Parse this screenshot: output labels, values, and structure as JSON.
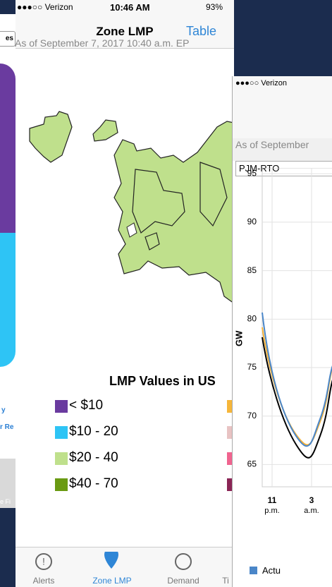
{
  "left_screen": {
    "texts": [
      "es",
      "y",
      "r Re",
      "e Fi"
    ]
  },
  "zone_screen": {
    "status": {
      "carrier": "●●●○○ Verizon",
      "time": "10:46 AM",
      "battery": "93%"
    },
    "nav": {
      "title": "Zone LMP",
      "action": "Table"
    },
    "as_of": "As of September 7, 2017 10:40 a.m. EP",
    "legend": {
      "title": "LMP Values in US",
      "items": [
        {
          "label": "< $10",
          "color": "#6a3b9f"
        },
        {
          "label": "$10 - 20",
          "color": "#2ec4f5"
        },
        {
          "label": "$20 - 40",
          "color": "#bfe08c"
        },
        {
          "label": "$40 - 70",
          "color": "#6a9a12"
        }
      ],
      "partial_colors": [
        "#f6b63a",
        "#e8c3c3",
        "#f0648f",
        "#8a2555"
      ]
    },
    "tabs": [
      "Alerts",
      "Zone LMP",
      "Demand",
      "Ti"
    ]
  },
  "demand_screen": {
    "status": {
      "carrier": "●●●○○ Verizon"
    },
    "as_of": "As of September",
    "zone": "PJM-RTO",
    "chart": {
      "type": "line",
      "y_label": "GW",
      "ylim": [
        62.7,
        95.6
      ],
      "yticks": [
        65,
        70,
        75,
        80,
        85,
        90,
        95
      ],
      "x_labels": [
        {
          "hour": "11",
          "period": "p.m."
        },
        {
          "hour": "3",
          "period": "a.m."
        }
      ]
    },
    "legend": "Actu"
  }
}
